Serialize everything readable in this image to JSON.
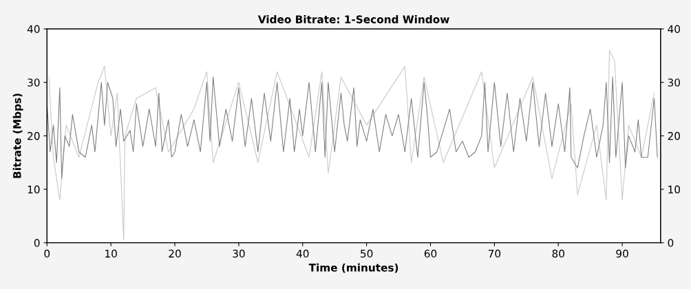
{
  "chart_data": {
    "type": "line",
    "title": "Video Bitrate: 1-Second Window",
    "xlabel": "Time (minutes)",
    "ylabel": "Bitrate (Mbps)",
    "xlim": [
      0,
      96
    ],
    "xticks": [
      0,
      10,
      20,
      30,
      40,
      50,
      60,
      70,
      80,
      90
    ],
    "ylim": [
      0,
      40
    ],
    "yticks": [
      0,
      10,
      20,
      30,
      40
    ],
    "y2lim": [
      0,
      40
    ],
    "y2ticks": [
      0,
      10,
      20,
      30,
      40
    ],
    "grid": false,
    "legend": false,
    "series": [
      {
        "color": "#c8c8c8",
        "x": [
          0.3,
          1,
          2,
          3,
          5,
          8,
          9,
          10,
          11,
          12,
          12.2,
          14,
          17,
          19,
          23,
          25,
          26,
          30,
          33,
          36,
          41,
          43,
          44,
          46,
          50,
          56,
          57,
          59,
          62,
          68,
          70,
          76,
          79,
          82,
          83,
          86,
          87.5,
          88,
          88.8,
          90,
          91,
          93,
          95
        ],
        "values": [
          31,
          16,
          8,
          22,
          16,
          30,
          33,
          20,
          28,
          0.5,
          20,
          27,
          29,
          17,
          25,
          32,
          15,
          30,
          15,
          32,
          16,
          32,
          13,
          31,
          22,
          33,
          15,
          31,
          15,
          32,
          14,
          31,
          12,
          26,
          9,
          22,
          8,
          36,
          34,
          8,
          22,
          16,
          28
        ]
      },
      {
        "color": "#7f7f7f",
        "x": [
          0,
          0.5,
          1,
          1.5,
          2,
          2.3,
          2.8,
          3.5,
          4,
          5,
          6,
          7,
          7.5,
          8.5,
          9,
          9.5,
          10.3,
          10.8,
          11.5,
          12,
          13,
          13.5,
          14,
          15,
          16,
          17,
          17.5,
          18,
          19,
          19.5,
          20,
          21,
          22,
          23,
          24,
          25,
          25.5,
          26,
          27,
          28,
          29,
          30,
          31,
          32,
          33,
          34,
          35,
          36,
          37,
          38,
          38.7,
          39.5,
          40,
          41,
          42,
          43,
          43.5,
          44,
          45,
          46,
          46.5,
          47,
          48,
          48.5,
          49,
          50,
          51,
          52,
          53,
          54,
          55,
          56,
          57,
          58,
          59,
          59.5,
          60,
          61,
          62,
          63,
          64,
          65,
          66,
          67,
          68,
          68.5,
          69,
          70,
          71,
          72,
          73,
          74,
          75,
          76,
          77,
          78,
          79,
          80,
          81,
          81.8,
          82,
          83,
          84,
          85,
          86,
          87,
          87.5,
          88,
          88.5,
          89,
          90,
          90.5,
          91,
          92,
          92.5,
          93,
          94,
          95,
          95.5
        ],
        "values": [
          26,
          17,
          22,
          15,
          29,
          12,
          20,
          18,
          24,
          17,
          16,
          22,
          17,
          30,
          22,
          30,
          27,
          18,
          25,
          19,
          21,
          17,
          26,
          18,
          25,
          18,
          28,
          17,
          23,
          16,
          17,
          24,
          18,
          23,
          17,
          30,
          19,
          31,
          18,
          25,
          19,
          29,
          18,
          27,
          17,
          28,
          19,
          30,
          17,
          27,
          17,
          25,
          20,
          30,
          17,
          30,
          16,
          30,
          17,
          28,
          22,
          19,
          29,
          18,
          23,
          19,
          25,
          17,
          24,
          20,
          24,
          17,
          27,
          16,
          30,
          24,
          16,
          17,
          21,
          25,
          17,
          19,
          16,
          17,
          20,
          30,
          17,
          30,
          18,
          28,
          17,
          27,
          19,
          30,
          18,
          28,
          18,
          26,
          17,
          29,
          16,
          14,
          20,
          25,
          16,
          22,
          30,
          15,
          31,
          16,
          30,
          14,
          20,
          17,
          23,
          16,
          16,
          27,
          16
        ]
      }
    ]
  }
}
